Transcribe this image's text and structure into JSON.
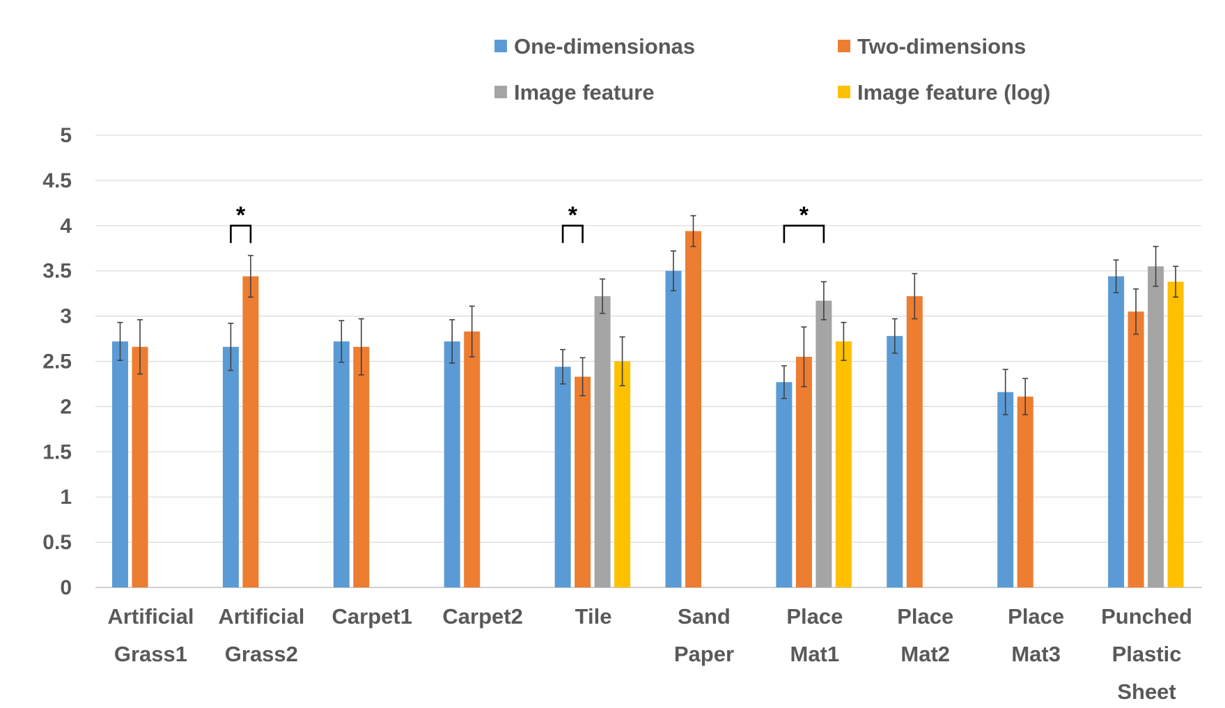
{
  "chart_data": {
    "type": "bar",
    "title": "",
    "xlabel": "",
    "ylabel": "",
    "ylim": [
      0,
      5
    ],
    "yticks": [
      "0",
      "0.5",
      "1",
      "1.5",
      "2",
      "2.5",
      "3",
      "3.5",
      "4",
      "4.5",
      "5"
    ],
    "grid": true,
    "legend_position": "top",
    "categories": [
      [
        "Artificial",
        "Grass1"
      ],
      [
        "Artificial",
        "Grass2"
      ],
      [
        "Carpet1"
      ],
      [
        "Carpet2"
      ],
      [
        "Tile"
      ],
      [
        "Sand",
        "Paper"
      ],
      [
        "Place",
        "Mat1"
      ],
      [
        "Place",
        "Mat2"
      ],
      [
        "Place",
        "Mat3"
      ],
      [
        "Punched",
        "Plastic",
        "Sheet"
      ]
    ],
    "series": [
      {
        "name": "One-dimensionas",
        "color": "#5B9BD5",
        "values": [
          2.72,
          2.66,
          2.72,
          2.72,
          2.44,
          3.5,
          2.27,
          2.78,
          2.16,
          3.44
        ],
        "errors": [
          0.21,
          0.26,
          0.23,
          0.24,
          0.19,
          0.22,
          0.18,
          0.19,
          0.25,
          0.18
        ]
      },
      {
        "name": "Two-dimensions",
        "color": "#ED7D31",
        "values": [
          2.66,
          3.44,
          2.66,
          2.83,
          2.33,
          3.94,
          2.55,
          3.22,
          2.11,
          3.05
        ],
        "errors": [
          0.3,
          0.23,
          0.31,
          0.28,
          0.21,
          0.17,
          0.33,
          0.25,
          0.2,
          0.25
        ]
      },
      {
        "name": "Image feature",
        "color": "#A5A5A5",
        "values": [
          null,
          null,
          null,
          null,
          3.22,
          null,
          3.17,
          null,
          null,
          3.55
        ],
        "errors": [
          null,
          null,
          null,
          null,
          0.19,
          null,
          0.21,
          null,
          null,
          0.22
        ]
      },
      {
        "name": "Image feature (log)",
        "color": "#FFC000",
        "values": [
          null,
          null,
          null,
          null,
          2.5,
          null,
          2.72,
          null,
          null,
          3.38
        ],
        "errors": [
          null,
          null,
          null,
          null,
          0.27,
          null,
          0.21,
          null,
          null,
          0.17
        ]
      }
    ],
    "significance": [
      {
        "label": "*",
        "category_index": 1,
        "from_series": 0,
        "to_series": 1,
        "level": 4.0
      },
      {
        "label": "*",
        "category_index": 4,
        "from_series": 0,
        "to_series": 1,
        "level": 4.0
      },
      {
        "label": "*",
        "category_index": 6,
        "from_series": 0,
        "to_series": 2,
        "level": 4.0
      }
    ]
  }
}
